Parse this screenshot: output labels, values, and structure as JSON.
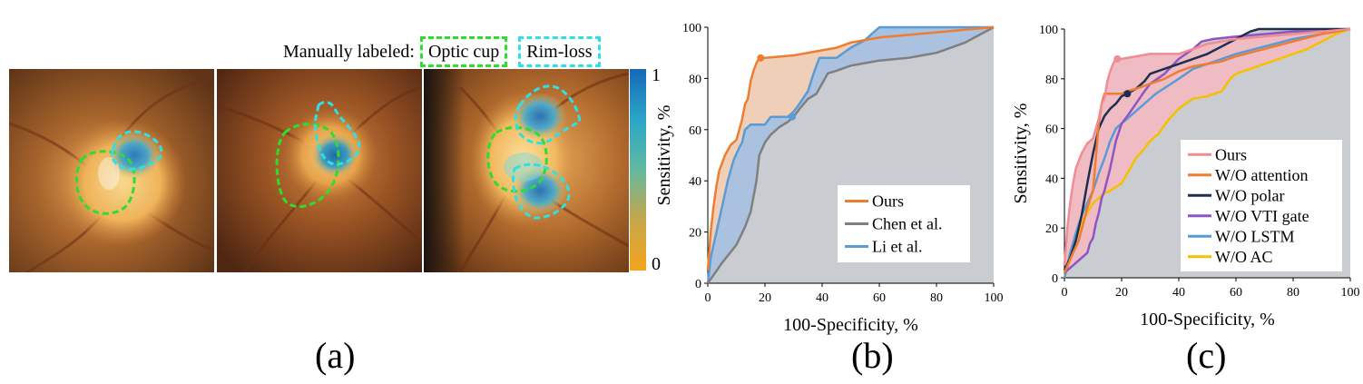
{
  "legend_top": {
    "prefix": "Manually labeled:",
    "optic_cup": "Optic cup",
    "rim_loss": "Rim-loss",
    "optic_cup_color": "#2ede2e",
    "rim_loss_color": "#2ee0e6"
  },
  "colorbar": {
    "max_label": "1",
    "min_label": "0",
    "colors": [
      "#1668b8",
      "#2aa6c8",
      "#62b9a0",
      "#c8a64a",
      "#f2a41e"
    ]
  },
  "panels": {
    "a": "(a)",
    "b": "(b)",
    "c": "(c)"
  },
  "chart_data": [
    {
      "type": "line",
      "panel": "(b)",
      "xlabel": "100-Specificity, %",
      "ylabel": "Sensitivity, %",
      "xlim": [
        0,
        100
      ],
      "ylim": [
        0,
        100
      ],
      "xticks": [
        0,
        20,
        40,
        60,
        80,
        100
      ],
      "yticks": [
        0,
        20,
        40,
        60,
        80,
        100
      ],
      "background_color": "#c9ccd1",
      "legend_position": "bottom-right",
      "series": [
        {
          "name": "Ours",
          "color": "#ee7d31",
          "fill": "#f6cfb3",
          "marker": [
            18.5,
            88
          ],
          "points": [
            [
              0,
              5
            ],
            [
              1,
              20
            ],
            [
              2,
              30
            ],
            [
              3,
              38
            ],
            [
              4,
              44
            ],
            [
              5,
              47
            ],
            [
              6,
              50
            ],
            [
              7,
              52
            ],
            [
              8,
              54
            ],
            [
              9,
              55
            ],
            [
              10,
              56
            ],
            [
              11,
              60
            ],
            [
              12,
              64
            ],
            [
              13,
              70
            ],
            [
              14,
              72
            ],
            [
              15,
              79
            ],
            [
              16,
              83
            ],
            [
              17,
              86
            ],
            [
              18,
              88
            ],
            [
              20,
              88
            ],
            [
              30,
              89
            ],
            [
              40,
              91
            ],
            [
              45,
              92
            ],
            [
              50,
              94
            ],
            [
              55,
              95
            ],
            [
              60,
              96
            ],
            [
              70,
              97
            ],
            [
              80,
              98
            ],
            [
              90,
              99
            ],
            [
              100,
              100
            ]
          ]
        },
        {
          "name": "Chen et al.",
          "color": "#7f7f7f",
          "points": [
            [
              0,
              0
            ],
            [
              5,
              8
            ],
            [
              10,
              15
            ],
            [
              13,
              22
            ],
            [
              15,
              28
            ],
            [
              17,
              40
            ],
            [
              18,
              50
            ],
            [
              20,
              55
            ],
            [
              22,
              58
            ],
            [
              25,
              61
            ],
            [
              28,
              63
            ],
            [
              30,
              65
            ],
            [
              32,
              68
            ],
            [
              35,
              72
            ],
            [
              38,
              74
            ],
            [
              40,
              78
            ],
            [
              42,
              82
            ],
            [
              45,
              83
            ],
            [
              50,
              85
            ],
            [
              55,
              86
            ],
            [
              60,
              87
            ],
            [
              70,
              88
            ],
            [
              80,
              90
            ],
            [
              90,
              94
            ],
            [
              100,
              100
            ]
          ]
        },
        {
          "name": "Li et al.",
          "color": "#5b9bd5",
          "fill": "#9dc0e6",
          "marker": [
            29.5,
            65
          ],
          "points": [
            [
              0,
              0
            ],
            [
              1,
              10
            ],
            [
              3,
              20
            ],
            [
              5,
              30
            ],
            [
              7,
              40
            ],
            [
              9,
              48
            ],
            [
              11,
              53
            ],
            [
              12,
              55
            ],
            [
              13,
              60
            ],
            [
              15,
              62
            ],
            [
              20,
              62
            ],
            [
              22,
              65
            ],
            [
              28,
              65
            ],
            [
              30,
              67
            ],
            [
              32,
              70
            ],
            [
              35,
              75
            ],
            [
              37,
              82
            ],
            [
              39,
              88
            ],
            [
              45,
              88
            ],
            [
              50,
              92
            ],
            [
              55,
              95
            ],
            [
              58,
              98
            ],
            [
              60,
              100
            ],
            [
              100,
              100
            ]
          ]
        }
      ]
    },
    {
      "type": "line",
      "panel": "(c)",
      "xlabel": "100-Specificity, %",
      "ylabel": "Sensitivity, %",
      "xlim": [
        0,
        100
      ],
      "ylim": [
        0,
        100
      ],
      "xticks": [
        0,
        20,
        40,
        60,
        80,
        100
      ],
      "yticks": [
        0,
        20,
        40,
        60,
        80,
        100
      ],
      "background_color": "#c9ccd1",
      "legend_position": "bottom-right",
      "series": [
        {
          "name": "Ours",
          "color": "#f08c94",
          "fill": "#f4b9c0",
          "marker": [
            18.5,
            88
          ],
          "points": [
            [
              0,
              5
            ],
            [
              1,
              20
            ],
            [
              2,
              30
            ],
            [
              3,
              38
            ],
            [
              4,
              44
            ],
            [
              5,
              47
            ],
            [
              6,
              50
            ],
            [
              7,
              52
            ],
            [
              8,
              54
            ],
            [
              9,
              55
            ],
            [
              10,
              56
            ],
            [
              11,
              60
            ],
            [
              12,
              64
            ],
            [
              13,
              70
            ],
            [
              14,
              72
            ],
            [
              15,
              79
            ],
            [
              16,
              83
            ],
            [
              17,
              86
            ],
            [
              18,
              88
            ],
            [
              20,
              88
            ],
            [
              30,
              90
            ],
            [
              40,
              90
            ],
            [
              45,
              92
            ],
            [
              50,
              94
            ],
            [
              55,
              95
            ],
            [
              60,
              96
            ],
            [
              70,
              97
            ],
            [
              80,
              98
            ],
            [
              90,
              99
            ],
            [
              100,
              100
            ]
          ]
        },
        {
          "name": "W/O attention",
          "color": "#ee7d31",
          "points": [
            [
              0,
              2
            ],
            [
              3,
              10
            ],
            [
              5,
              15
            ],
            [
              8,
              28
            ],
            [
              10,
              35
            ],
            [
              12,
              62
            ],
            [
              13,
              70
            ],
            [
              14,
              74
            ],
            [
              20,
              74
            ],
            [
              22,
              75
            ],
            [
              25,
              76
            ],
            [
              30,
              78
            ],
            [
              35,
              80
            ],
            [
              40,
              83
            ],
            [
              45,
              85
            ],
            [
              50,
              86
            ],
            [
              55,
              87
            ],
            [
              60,
              89
            ],
            [
              70,
              92
            ],
            [
              80,
              95
            ],
            [
              90,
              98
            ],
            [
              100,
              100
            ]
          ]
        },
        {
          "name": "W/O polar",
          "color": "#1f2d50",
          "marker": [
            22,
            74
          ],
          "points": [
            [
              0,
              3
            ],
            [
              2,
              8
            ],
            [
              4,
              15
            ],
            [
              6,
              25
            ],
            [
              8,
              38
            ],
            [
              10,
              50
            ],
            [
              12,
              60
            ],
            [
              14,
              65
            ],
            [
              16,
              68
            ],
            [
              18,
              70
            ],
            [
              20,
              73
            ],
            [
              22,
              74
            ],
            [
              25,
              76
            ],
            [
              28,
              79
            ],
            [
              30,
              82
            ],
            [
              35,
              84
            ],
            [
              40,
              86
            ],
            [
              45,
              88
            ],
            [
              50,
              90
            ],
            [
              55,
              93
            ],
            [
              60,
              96
            ],
            [
              65,
              99
            ],
            [
              68,
              100
            ],
            [
              100,
              100
            ]
          ]
        },
        {
          "name": "W/O VTI gate",
          "color": "#8e56c4",
          "points": [
            [
              0,
              2
            ],
            [
              3,
              5
            ],
            [
              6,
              8
            ],
            [
              8,
              10
            ],
            [
              9,
              14
            ],
            [
              10,
              16
            ],
            [
              11,
              22
            ],
            [
              12,
              26
            ],
            [
              13,
              32
            ],
            [
              14,
              35
            ],
            [
              16,
              44
            ],
            [
              18,
              55
            ],
            [
              20,
              62
            ],
            [
              22,
              65
            ],
            [
              25,
              70
            ],
            [
              28,
              75
            ],
            [
              30,
              78
            ],
            [
              35,
              82
            ],
            [
              40,
              88
            ],
            [
              45,
              92
            ],
            [
              48,
              95
            ],
            [
              52,
              96
            ],
            [
              60,
              97
            ],
            [
              70,
              98
            ],
            [
              80,
              99
            ],
            [
              90,
              99
            ],
            [
              100,
              100
            ]
          ]
        },
        {
          "name": "W/O LSTM",
          "color": "#5b9bd5",
          "points": [
            [
              0,
              0
            ],
            [
              2,
              10
            ],
            [
              4,
              18
            ],
            [
              6,
              25
            ],
            [
              8,
              30
            ],
            [
              10,
              35
            ],
            [
              12,
              42
            ],
            [
              14,
              48
            ],
            [
              16,
              55
            ],
            [
              18,
              60
            ],
            [
              20,
              62
            ],
            [
              24,
              66
            ],
            [
              28,
              70
            ],
            [
              32,
              74
            ],
            [
              36,
              77
            ],
            [
              40,
              80
            ],
            [
              45,
              84
            ],
            [
              50,
              86
            ],
            [
              55,
              88
            ],
            [
              60,
              90
            ],
            [
              70,
              93
            ],
            [
              80,
              96
            ],
            [
              90,
              98
            ],
            [
              100,
              100
            ]
          ]
        },
        {
          "name": "W/O AC",
          "color": "#f5c000",
          "points": [
            [
              0,
              0
            ],
            [
              3,
              12
            ],
            [
              6,
              22
            ],
            [
              8,
              26
            ],
            [
              10,
              30
            ],
            [
              12,
              32
            ],
            [
              14,
              34
            ],
            [
              16,
              35
            ],
            [
              20,
              38
            ],
            [
              22,
              42
            ],
            [
              25,
              48
            ],
            [
              28,
              52
            ],
            [
              30,
              55
            ],
            [
              33,
              58
            ],
            [
              36,
              63
            ],
            [
              40,
              68
            ],
            [
              45,
              72
            ],
            [
              50,
              73
            ],
            [
              55,
              75
            ],
            [
              58,
              80
            ],
            [
              60,
              82
            ],
            [
              65,
              84
            ],
            [
              70,
              86
            ],
            [
              75,
              88
            ],
            [
              80,
              90
            ],
            [
              85,
              92
            ],
            [
              90,
              95
            ],
            [
              95,
              98
            ],
            [
              100,
              100
            ]
          ]
        }
      ]
    }
  ]
}
